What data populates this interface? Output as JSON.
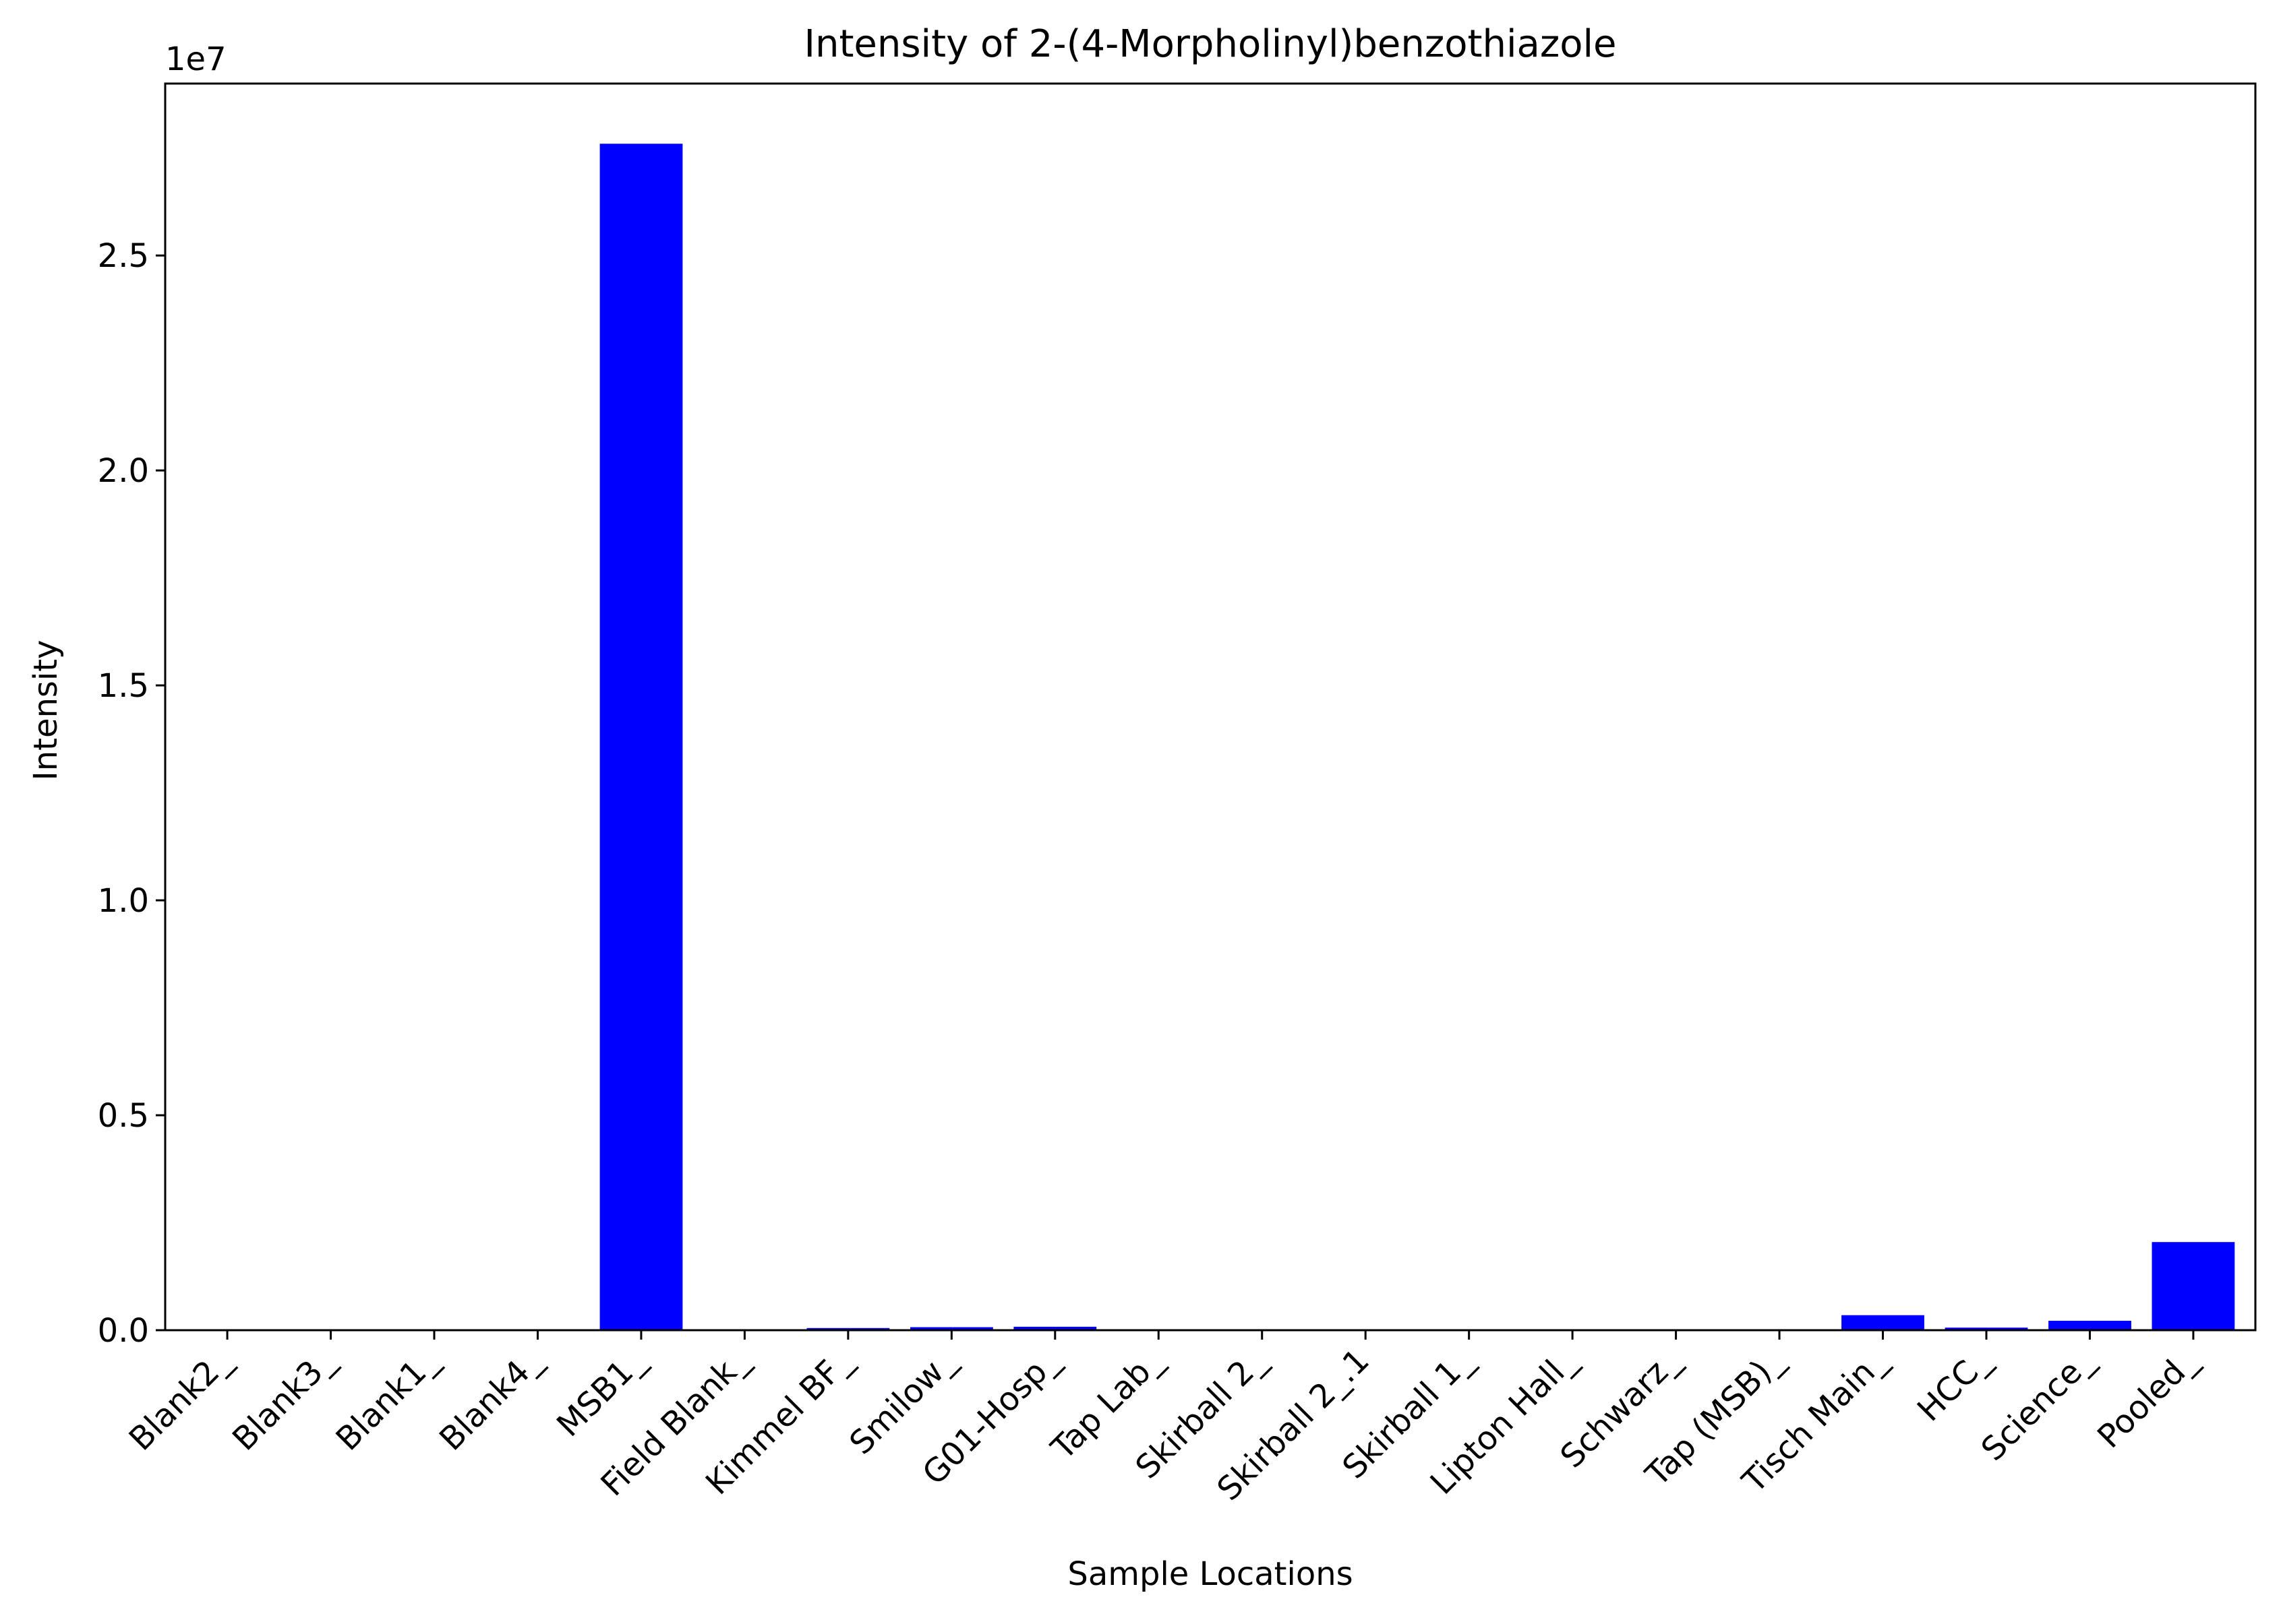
{
  "chart_data": {
    "type": "bar",
    "title": "Intensity of 2-(4-Morpholinyl)benzothiazole",
    "xlabel": "Sample Locations",
    "ylabel": "Intensity",
    "y_offset_label": "1e7",
    "y_scale": 10000000,
    "ylim": [
      0,
      29000000
    ],
    "yticks": [
      0,
      5000000,
      10000000,
      15000000,
      20000000,
      25000000
    ],
    "ytick_labels": [
      "0.0",
      "0.5",
      "1.0",
      "1.5",
      "2.0",
      "2.5"
    ],
    "grid": false,
    "bar_color": "#0000ff",
    "categories": [
      "Blank2_",
      "Blank3_",
      "Blank1_",
      "Blank4_",
      "MSB1_",
      "Field Blank_",
      "Kimmel BF_",
      "Smilow_",
      "G01-Hosp_",
      "Tap Lab_",
      "Skirball 2_",
      "Skirball 2_.1",
      "Skirball 1_",
      "Lipton Hall_",
      "Schwarz_",
      "Tap (MSB)_",
      "Tisch Main_",
      "HCC_",
      "Science_",
      "Pooled_"
    ],
    "values": [
      0,
      0,
      0,
      0,
      27600000,
      0,
      50000,
      70000,
      80000,
      0,
      0,
      0,
      0,
      0,
      0,
      0,
      350000,
      60000,
      220000,
      2050000
    ]
  }
}
